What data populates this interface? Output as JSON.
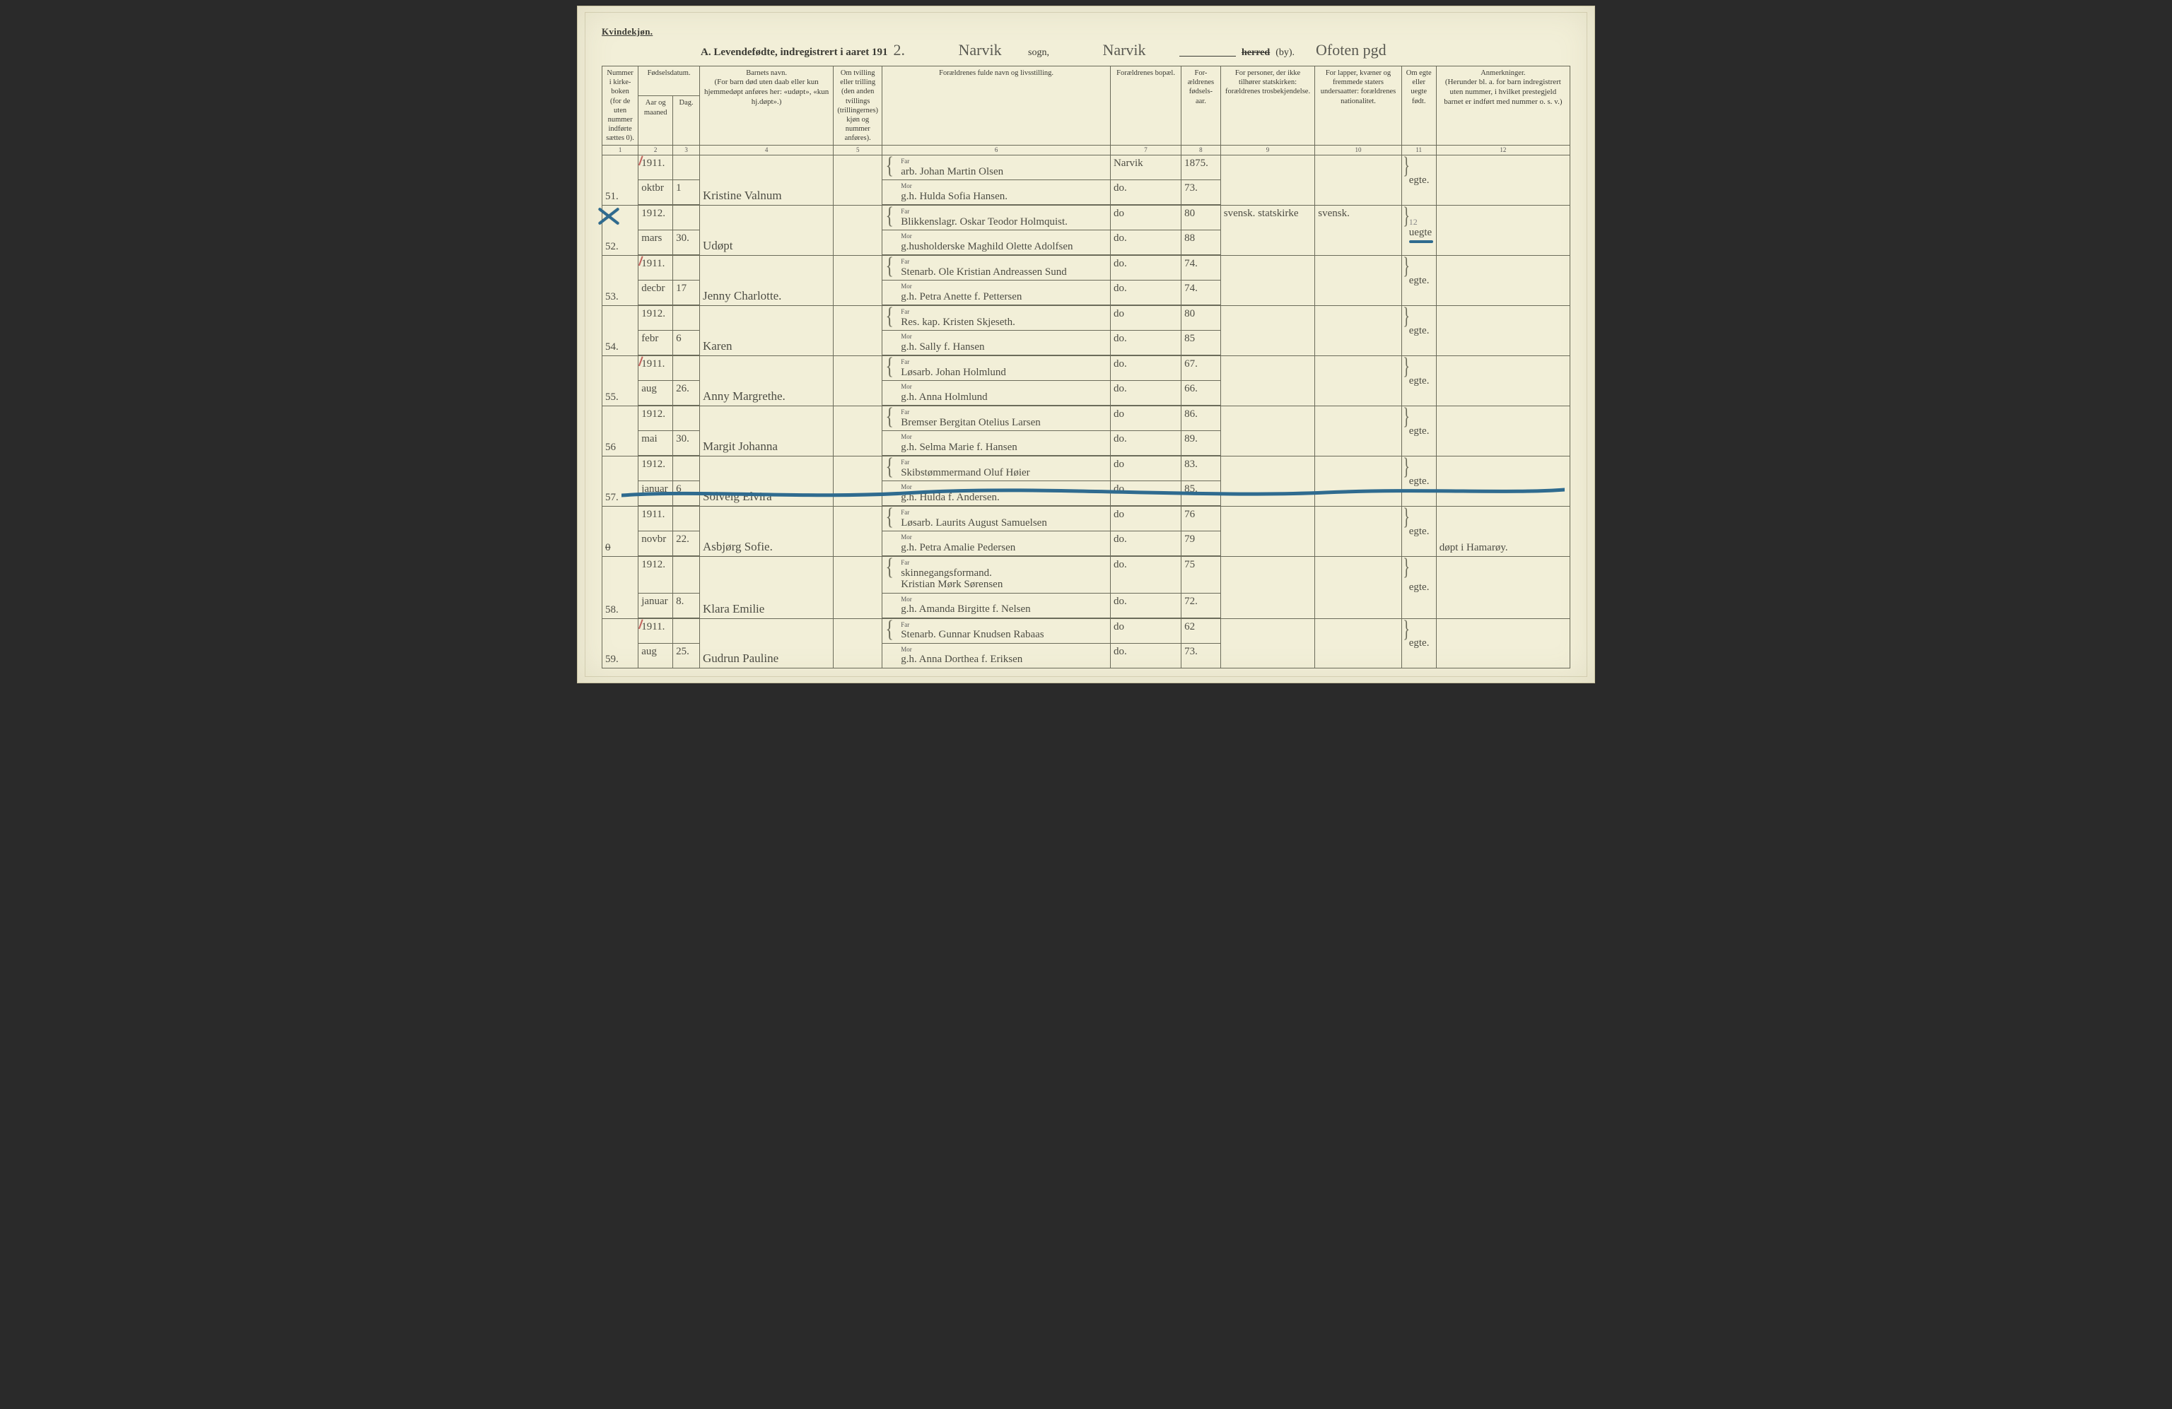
{
  "header": {
    "kvindekjon": "Kvindekjøn.",
    "title_prefix": "A.  Levendefødte, indregistrert i aaret 191",
    "year_suffix_hw": "2.",
    "sogn_hw": "Narvik",
    "sogn_label": "sogn,",
    "by_hw": "Narvik",
    "herred_strike": "herred",
    "by_label": "(by).",
    "pgd_hw": "Ofoten pgd"
  },
  "columns": {
    "c1": "Nummer i kirke-boken (for de uten nummer indførte sættes 0).",
    "c2_3_top": "Fødselsdatum.",
    "c2": "Aar og maaned",
    "c3": "Dag.",
    "c4_top": "Barnets navn.",
    "c4_sub": "(For barn død uten daab eller kun hjemmedøpt anføres her: «udøpt», «kun hj.døpt».)",
    "c5": "Om tvilling eller trilling (den anden tvillings (trillingernes) kjøn og nummer anføres).",
    "c6": "Forældrenes fulde navn og livsstilling.",
    "c7": "Forældrenes bopæl.",
    "c8": "For-ældrenes fødsels-aar.",
    "c9": "For personer, der ikke tilhører statskirken: forældrenes trosbekjendelse.",
    "c10": "For lapper, kvæner og fremmede staters undersaatter: forældrenes nationalitet.",
    "c11": "Om egte eller uegte født.",
    "c12_top": "Anmerkninger.",
    "c12_sub": "(Herunder bl. a. for barn indregistrert uten nummer, i hvilket prestegjeld barnet er indført med nummer o. s. v.)"
  },
  "colnums": [
    "1",
    "2",
    "3",
    "4",
    "5",
    "6",
    "7",
    "8",
    "9",
    "10",
    "11",
    "12"
  ],
  "far_label": "Far",
  "mor_label": "Mor",
  "rows": [
    {
      "num": "51.",
      "red_tick": true,
      "year_month_top": "1911.",
      "year_month_bot": "oktbr",
      "day": "1",
      "child": "Kristine Valnum",
      "far": "arb.  Johan Martin Olsen",
      "mor": "g.h. Hulda Sofia Hansen.",
      "bopael_top": "Narvik",
      "bopael_bot": "do.",
      "faar_top": "1875.",
      "faar_bot": "73.",
      "tros": "",
      "nat": "",
      "egte": "egte.",
      "anm": ""
    },
    {
      "num": "52.",
      "blue_cross": true,
      "year_month_top": "1912.",
      "year_month_bot": "mars",
      "day": "30.",
      "child": "Udøpt",
      "far": "Blikkenslagr.  Oskar Teodor Holmquist.",
      "mor": "g.husholderske Maghild Olette Adolfsen",
      "bopael_top": "do",
      "bopael_bot": "do.",
      "faar_top": "80",
      "faar_bot": "88",
      "tros": "svensk. statskirke",
      "nat": "svensk.",
      "egte_top": "12",
      "egte": "uegte",
      "egte_blue_under": true,
      "anm": ""
    },
    {
      "num": "53.",
      "red_tick": true,
      "year_month_top": "1911.",
      "year_month_bot": "decbr",
      "day": "17",
      "child": "Jenny Charlotte.",
      "far": "Stenarb.  Ole Kristian Andreassen Sund",
      "mor": "g.h. Petra Anette f. Pettersen",
      "bopael_top": "do.",
      "bopael_bot": "do.",
      "faar_top": "74.",
      "faar_bot": "74.",
      "tros": "",
      "nat": "",
      "egte": "egte.",
      "anm": ""
    },
    {
      "num": "54.",
      "year_month_top": "1912.",
      "year_month_bot": "febr",
      "day": "6",
      "child": "Karen",
      "far": "Res. kap.  Kristen Skjeseth.",
      "mor": "g.h. Sally f. Hansen",
      "bopael_top": "do",
      "bopael_bot": "do.",
      "faar_top": "80",
      "faar_bot": "85",
      "tros": "",
      "nat": "",
      "egte": "egte.",
      "anm": ""
    },
    {
      "num": "55.",
      "red_tick": true,
      "year_month_top": "1911.",
      "year_month_bot": "aug",
      "day": "26.",
      "child": "Anny Margrethe.",
      "far": "Løsarb.  Johan Holmlund",
      "mor": "g.h. Anna Holmlund",
      "bopael_top": "do.",
      "bopael_bot": "do.",
      "faar_top": "67.",
      "faar_bot": "66.",
      "tros": "",
      "nat": "",
      "egte": "egte.",
      "anm": ""
    },
    {
      "num": "56",
      "year_month_top": "1912.",
      "year_month_bot": "mai",
      "day": "30.",
      "child": "Margit Johanna",
      "far": "Bremser Bergitan Otelius Larsen",
      "mor": "g.h. Selma Marie f. Hansen",
      "bopael_top": "do",
      "bopael_bot": "do.",
      "faar_top": "86.",
      "faar_bot": "89.",
      "tros": "",
      "nat": "",
      "egte": "egte.",
      "anm": ""
    },
    {
      "num": "57.",
      "year_month_top": "1912.",
      "year_month_bot": "januar",
      "day": "6",
      "child": "Solveig Elvira",
      "far": "Skibstømmermand Oluf Høier",
      "mor": "g.h. Hulda f. Andersen.",
      "bopael_top": "do",
      "bopael_bot": "do.",
      "faar_top": "83.",
      "faar_bot": "85.",
      "tros": "",
      "nat": "",
      "egte": "egte.",
      "anm": ""
    },
    {
      "num": "0",
      "num_strike": true,
      "blue_row_strike": true,
      "year_month_top": "1911.",
      "year_month_bot": "novbr",
      "day": "22.",
      "child": "Asbjørg Sofie.",
      "far": "Løsarb. Laurits August Samuelsen",
      "mor": "g.h. Petra Amalie Pedersen",
      "bopael_top": "do",
      "bopael_bot": "do.",
      "faar_top": "76",
      "faar_bot": "79",
      "tros": "",
      "nat": "",
      "egte": "egte.",
      "anm": "døpt i Hamarøy."
    },
    {
      "num": "58.",
      "year_month_top": "1912.",
      "year_month_bot": "januar",
      "day": "8.",
      "child": "Klara Emilie",
      "far": "skinnegangsformand.\nKristian Mørk Sørensen",
      "mor": "g.h. Amanda Birgitte f. Nelsen",
      "bopael_top": "do.",
      "bopael_bot": "do.",
      "faar_top": "75",
      "faar_bot": "72.",
      "tros": "",
      "nat": "",
      "egte": "egte.",
      "anm": ""
    },
    {
      "num": "59.",
      "red_tick": true,
      "year_month_top": "1911.",
      "year_month_bot": "aug",
      "day": "25.",
      "child": "Gudrun Pauline",
      "far": "Stenarb.  Gunnar Knudsen Rabaas",
      "mor": "g.h. Anna Dorthea f. Eriksen",
      "bopael_top": "do",
      "bopael_bot": "do.",
      "faar_top": "62",
      "faar_bot": "73.",
      "tros": "",
      "nat": "",
      "egte": "egte.",
      "anm": ""
    }
  ]
}
